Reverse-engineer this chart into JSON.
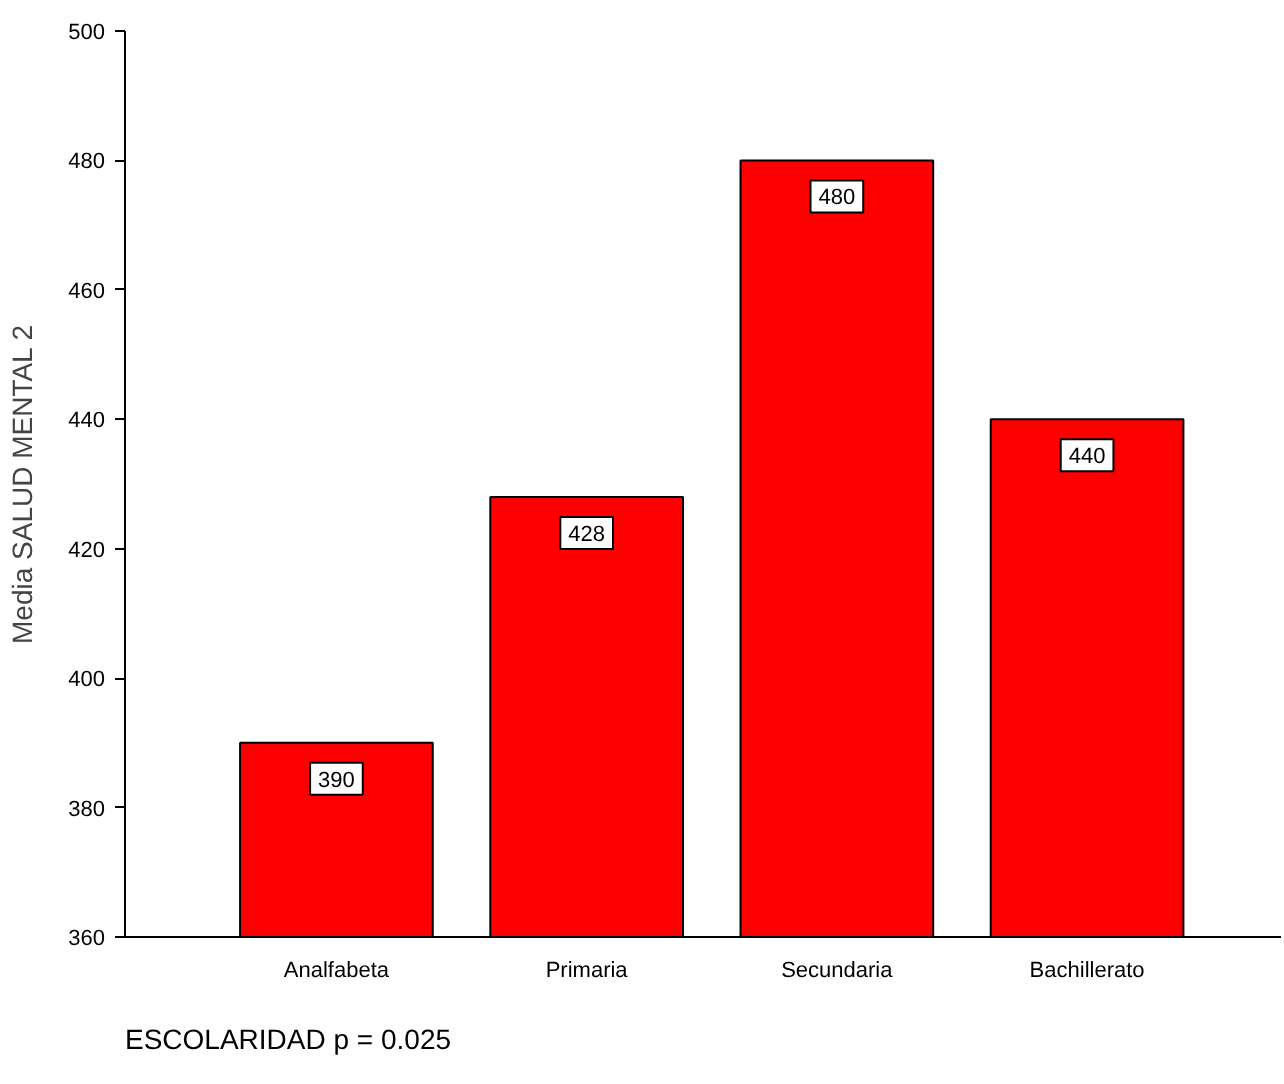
{
  "chart_data": {
    "type": "bar",
    "categories": [
      "Analfabeta",
      "Primaria",
      "Secundaria",
      "Bachillerato"
    ],
    "values": [
      390,
      428,
      480,
      440
    ],
    "color": "#ff0000",
    "ylabel": "Media SALUD MENTAL 2",
    "xlabel": "ESCOLARIDAD p = 0.025",
    "ylim": [
      360,
      500
    ],
    "yticks": [
      360,
      380,
      400,
      420,
      440,
      460,
      480,
      500
    ],
    "data_labels": true,
    "grid": false
  }
}
